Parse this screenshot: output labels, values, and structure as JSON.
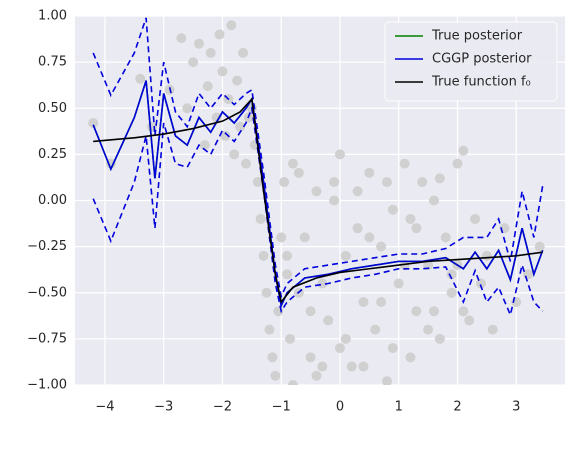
{
  "chart_data": {
    "type": "line",
    "xlim": [
      -4.51,
      3.83
    ],
    "ylim": [
      -1,
      1
    ],
    "xticks": [
      {
        "value": -4,
        "label": "−4"
      },
      {
        "value": -3,
        "label": "−3"
      },
      {
        "value": -2,
        "label": "−2"
      },
      {
        "value": -1,
        "label": "−1"
      },
      0,
      1,
      2,
      3
    ],
    "yticks": [
      {
        "value": -1,
        "label": "−1.00"
      },
      {
        "value": -0.75,
        "label": "−0.75"
      },
      {
        "value": -0.5,
        "label": "−0.50"
      },
      {
        "value": -0.25,
        "label": "−0.25"
      },
      {
        "value": 0,
        "label": "0.00"
      },
      {
        "value": 0.25,
        "label": "0.25"
      },
      {
        "value": 0.5,
        "label": "0.50"
      },
      {
        "value": 0.75,
        "label": "0.75"
      },
      {
        "value": 1,
        "label": "1.00"
      }
    ],
    "grid": true,
    "legend": "upper right",
    "points": {
      "color": "#d0d0d0",
      "x": [
        -4.2,
        -3.9,
        -3.4,
        -3.2,
        -2.9,
        -2.7,
        -2.6,
        -2.5,
        -2.4,
        -2.3,
        -2.25,
        -2.2,
        -2.1,
        -2.05,
        -2.0,
        -1.95,
        -1.9,
        -1.85,
        -1.8,
        -1.75,
        -1.7,
        -1.65,
        -1.6,
        -1.55,
        -1.5,
        -1.45,
        -1.4,
        -1.35,
        -1.3,
        -1.25,
        -1.2,
        -1.15,
        -1.1,
        -1.05,
        -1.0,
        -0.95,
        -0.9,
        -0.85,
        -0.8,
        -0.7,
        -0.6,
        -0.5,
        -0.4,
        -0.3,
        -0.2,
        -0.1,
        0.0,
        0.1,
        0.2,
        0.3,
        0.4,
        0.5,
        0.6,
        0.7,
        0.8,
        0.9,
        1.0,
        1.1,
        1.2,
        1.3,
        1.4,
        1.5,
        1.6,
        1.7,
        1.8,
        1.9,
        2.0,
        2.1,
        2.2,
        2.3,
        2.4,
        2.5,
        2.6,
        2.8,
        3.0,
        3.2,
        3.4,
        -0.9,
        -0.7,
        -0.5,
        -0.3,
        -0.1,
        0.1,
        0.3,
        0.5,
        0.7,
        0.9,
        1.1,
        1.3,
        1.5,
        1.7,
        1.9,
        2.1,
        -0.8,
        -0.4,
        0,
        0.4,
        0.8,
        1.2,
        1.6,
        2.0
      ],
      "y": [
        0.42,
        0.2,
        0.66,
        0.4,
        0.6,
        0.88,
        0.5,
        0.75,
        0.85,
        0.3,
        0.62,
        0.8,
        0.45,
        0.9,
        0.7,
        0.35,
        0.55,
        0.95,
        0.25,
        0.65,
        0.4,
        0.8,
        0.2,
        0.45,
        0.5,
        0.3,
        0.1,
        -0.1,
        -0.3,
        -0.5,
        -0.7,
        -0.85,
        -0.95,
        -0.6,
        -0.2,
        0.1,
        -0.4,
        -0.75,
        0.2,
        -0.5,
        -0.2,
        -0.85,
        0.05,
        -0.45,
        -0.65,
        0.0,
        0.25,
        -0.3,
        -0.9,
        -0.15,
        -0.55,
        0.15,
        -0.7,
        -0.25,
        0.1,
        -0.8,
        -0.45,
        0.2,
        -0.1,
        -0.6,
        0.1,
        -0.35,
        0.0,
        -0.75,
        -0.2,
        -0.5,
        0.2,
        0.27,
        -0.65,
        -0.1,
        -0.45,
        -0.3,
        -0.7,
        -0.15,
        -0.55,
        -0.4,
        -0.25,
        -0.3,
        0.15,
        -0.6,
        -0.9,
        0.1,
        -0.75,
        0.05,
        -0.2,
        -0.55,
        -0.05,
        -0.35,
        -0.15,
        -0.7,
        0.12,
        -0.4,
        -0.6,
        -1.0,
        -0.95,
        -0.8,
        -0.9,
        -0.98,
        -0.85,
        -0.6,
        -0.35
      ]
    },
    "series": [
      {
        "name": "True posterior",
        "color": "#008000",
        "dashed": false,
        "x": [
          -4.2,
          -3.9,
          -3.5,
          -3.3,
          -3.15,
          -3.0,
          -2.8,
          -2.6,
          -2.4,
          -2.2,
          -2.0,
          -1.8,
          -1.6,
          -1.5,
          -1.3,
          -1.1,
          -1.0,
          -0.9,
          -0.6,
          -0.2,
          0.2,
          0.6,
          1.0,
          1.4,
          1.8,
          2.1,
          2.3,
          2.5,
          2.7,
          2.9,
          3.1,
          3.3,
          3.45
        ],
        "values": [
          0.41,
          0.17,
          0.45,
          0.65,
          0.12,
          0.58,
          0.35,
          0.3,
          0.45,
          0.37,
          0.48,
          0.42,
          0.5,
          0.55,
          0.1,
          -0.4,
          -0.57,
          -0.5,
          -0.42,
          -0.4,
          -0.37,
          -0.35,
          -0.33,
          -0.33,
          -0.31,
          -0.37,
          -0.28,
          -0.37,
          -0.27,
          -0.43,
          -0.15,
          -0.4,
          -0.27
        ]
      },
      {
        "name": "CGGP posterior",
        "color": "#0000dd",
        "dashed": false,
        "x": [
          -4.2,
          -3.9,
          -3.5,
          -3.3,
          -3.15,
          -3.0,
          -2.8,
          -2.6,
          -2.4,
          -2.2,
          -2.0,
          -1.8,
          -1.6,
          -1.5,
          -1.3,
          -1.1,
          -1.0,
          -0.9,
          -0.6,
          -0.2,
          0.2,
          0.6,
          1.0,
          1.4,
          1.8,
          2.1,
          2.3,
          2.5,
          2.7,
          2.9,
          3.1,
          3.3,
          3.45
        ],
        "values": [
          0.41,
          0.17,
          0.45,
          0.65,
          0.12,
          0.58,
          0.35,
          0.3,
          0.45,
          0.37,
          0.48,
          0.42,
          0.5,
          0.55,
          0.1,
          -0.4,
          -0.57,
          -0.5,
          -0.42,
          -0.4,
          -0.37,
          -0.35,
          -0.33,
          -0.33,
          -0.31,
          -0.37,
          -0.28,
          -0.37,
          -0.27,
          -0.43,
          -0.15,
          -0.4,
          -0.27
        ]
      },
      {
        "color": "#0000dd",
        "dashed": true,
        "x": [
          -4.2,
          -3.9,
          -3.5,
          -3.3,
          -3.15,
          -3.0,
          -2.8,
          -2.6,
          -2.4,
          -2.2,
          -2.0,
          -1.8,
          -1.6,
          -1.5,
          -1.3,
          -1.1,
          -1.0,
          -0.9,
          -0.6,
          -0.2,
          0.2,
          0.6,
          1.0,
          1.4,
          1.8,
          2.1,
          2.3,
          2.5,
          2.7,
          2.9,
          3.1,
          3.3,
          3.45
        ],
        "values": [
          0.8,
          0.57,
          0.8,
          0.99,
          0.35,
          0.75,
          0.48,
          0.4,
          0.58,
          0.5,
          0.58,
          0.52,
          0.58,
          0.6,
          0.15,
          -0.35,
          -0.52,
          -0.45,
          -0.37,
          -0.35,
          -0.33,
          -0.31,
          -0.29,
          -0.29,
          -0.26,
          -0.2,
          -0.2,
          -0.2,
          -0.1,
          -0.33,
          0.05,
          -0.2,
          0.08
        ]
      },
      {
        "color": "#0000dd",
        "dashed": true,
        "x": [
          -4.2,
          -3.9,
          -3.5,
          -3.3,
          -3.15,
          -3.0,
          -2.8,
          -2.6,
          -2.4,
          -2.2,
          -2.0,
          -1.8,
          -1.6,
          -1.5,
          -1.3,
          -1.1,
          -1.0,
          -0.9,
          -0.6,
          -0.2,
          0.2,
          0.6,
          1.0,
          1.4,
          1.8,
          2.1,
          2.3,
          2.5,
          2.7,
          2.9,
          3.1,
          3.3,
          3.45
        ],
        "values": [
          0.01,
          -0.22,
          0.1,
          0.35,
          -0.15,
          0.42,
          0.2,
          0.18,
          0.3,
          0.25,
          0.38,
          0.32,
          0.42,
          0.5,
          0.05,
          -0.45,
          -0.6,
          -0.55,
          -0.47,
          -0.45,
          -0.42,
          -0.4,
          -0.37,
          -0.37,
          -0.36,
          -0.55,
          -0.38,
          -0.55,
          -0.47,
          -0.62,
          -0.35,
          -0.55,
          -0.6
        ]
      },
      {
        "name": "True function f₀",
        "color": "#000000",
        "dashed": false,
        "x": [
          -4.2,
          -3.5,
          -3.0,
          -2.5,
          -2.0,
          -1.7,
          -1.5,
          -1.3,
          -1.1,
          -1.0,
          -0.8,
          -0.4,
          0.0,
          0.5,
          1.0,
          1.5,
          2.0,
          2.5,
          3.0,
          3.45
        ],
        "values": [
          0.32,
          0.34,
          0.36,
          0.39,
          0.43,
          0.48,
          0.55,
          0.05,
          -0.4,
          -0.55,
          -0.47,
          -0.42,
          -0.39,
          -0.37,
          -0.35,
          -0.33,
          -0.32,
          -0.31,
          -0.3,
          -0.28
        ]
      }
    ]
  }
}
